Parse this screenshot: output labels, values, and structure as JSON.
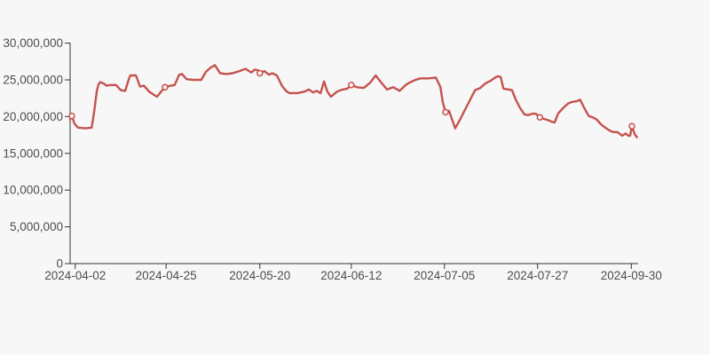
{
  "page": {
    "background_color": "#f7f7f7"
  },
  "chart_data": {
    "type": "line",
    "title": "",
    "xlabel": "",
    "ylabel": "",
    "grid": false,
    "legend": [],
    "line_color": "#c5524e",
    "marker_style": "open-circle",
    "marker_fill": "#f7f7f7",
    "axis_color": "#333333",
    "label_color": "#4d4d4d",
    "ylim": [
      0,
      30000000
    ],
    "y_ticks": [
      {
        "value": 0,
        "label": "0"
      },
      {
        "value": 5000000,
        "label": "5,000,000"
      },
      {
        "value": 10000000,
        "label": "10,000,000"
      },
      {
        "value": 15000000,
        "label": "15,000,000"
      },
      {
        "value": 20000000,
        "label": "20,000,000"
      },
      {
        "value": 25000000,
        "label": "25,000,000"
      },
      {
        "value": 30000000,
        "label": "30,000,000"
      }
    ],
    "x_ticks": [
      {
        "pos": 0.009,
        "label": "2024-04-02"
      },
      {
        "pos": 0.169,
        "label": "2024-04-25"
      },
      {
        "pos": 0.334,
        "label": "2024-05-20"
      },
      {
        "pos": 0.495,
        "label": "2024-06-12"
      },
      {
        "pos": 0.659,
        "label": "2024-07-05"
      },
      {
        "pos": 0.823,
        "label": "2024-07-27"
      },
      {
        "pos": 0.988,
        "label": "2024-09-30"
      }
    ],
    "markers": [
      [
        0.003,
        20100000
      ],
      [
        0.167,
        24000000
      ],
      [
        0.334,
        25900000
      ],
      [
        0.495,
        24300000
      ],
      [
        0.661,
        20600000
      ],
      [
        0.827,
        19900000
      ],
      [
        0.989,
        18700000
      ]
    ],
    "points": [
      [
        0.0,
        19600000
      ],
      [
        0.003,
        20100000
      ],
      [
        0.008,
        19000000
      ],
      [
        0.014,
        18500000
      ],
      [
        0.027,
        18400000
      ],
      [
        0.038,
        18500000
      ],
      [
        0.042,
        20500000
      ],
      [
        0.047,
        23500000
      ],
      [
        0.05,
        24400000
      ],
      [
        0.053,
        24700000
      ],
      [
        0.059,
        24500000
      ],
      [
        0.064,
        24200000
      ],
      [
        0.07,
        24300000
      ],
      [
        0.081,
        24300000
      ],
      [
        0.089,
        23600000
      ],
      [
        0.097,
        23500000
      ],
      [
        0.103,
        25000000
      ],
      [
        0.106,
        25600000
      ],
      [
        0.116,
        25600000
      ],
      [
        0.123,
        24100000
      ],
      [
        0.13,
        24200000
      ],
      [
        0.139,
        23400000
      ],
      [
        0.147,
        23000000
      ],
      [
        0.153,
        22700000
      ],
      [
        0.159,
        23300000
      ],
      [
        0.167,
        24000000
      ],
      [
        0.177,
        24200000
      ],
      [
        0.184,
        24300000
      ],
      [
        0.192,
        25700000
      ],
      [
        0.197,
        25800000
      ],
      [
        0.205,
        25100000
      ],
      [
        0.217,
        25000000
      ],
      [
        0.231,
        25000000
      ],
      [
        0.239,
        26100000
      ],
      [
        0.248,
        26700000
      ],
      [
        0.255,
        27000000
      ],
      [
        0.264,
        25900000
      ],
      [
        0.275,
        25800000
      ],
      [
        0.286,
        25900000
      ],
      [
        0.298,
        26200000
      ],
      [
        0.305,
        26400000
      ],
      [
        0.309,
        26500000
      ],
      [
        0.319,
        26000000
      ],
      [
        0.325,
        26400000
      ],
      [
        0.331,
        26300000
      ],
      [
        0.334,
        25900000
      ],
      [
        0.342,
        26200000
      ],
      [
        0.35,
        25700000
      ],
      [
        0.356,
        25900000
      ],
      [
        0.364,
        25600000
      ],
      [
        0.373,
        24200000
      ],
      [
        0.38,
        23500000
      ],
      [
        0.386,
        23200000
      ],
      [
        0.4,
        23200000
      ],
      [
        0.413,
        23400000
      ],
      [
        0.42,
        23700000
      ],
      [
        0.428,
        23300000
      ],
      [
        0.434,
        23500000
      ],
      [
        0.441,
        23200000
      ],
      [
        0.447,
        24800000
      ],
      [
        0.453,
        23400000
      ],
      [
        0.459,
        22700000
      ],
      [
        0.47,
        23400000
      ],
      [
        0.48,
        23700000
      ],
      [
        0.488,
        23800000
      ],
      [
        0.495,
        24300000
      ],
      [
        0.505,
        24000000
      ],
      [
        0.517,
        23900000
      ],
      [
        0.528,
        24600000
      ],
      [
        0.538,
        25600000
      ],
      [
        0.547,
        24700000
      ],
      [
        0.558,
        23700000
      ],
      [
        0.569,
        24000000
      ],
      [
        0.58,
        23500000
      ],
      [
        0.591,
        24300000
      ],
      [
        0.597,
        24600000
      ],
      [
        0.608,
        25000000
      ],
      [
        0.617,
        25200000
      ],
      [
        0.631,
        25200000
      ],
      [
        0.644,
        25300000
      ],
      [
        0.652,
        24000000
      ],
      [
        0.656,
        22000000
      ],
      [
        0.661,
        20600000
      ],
      [
        0.667,
        20800000
      ],
      [
        0.678,
        18400000
      ],
      [
        0.686,
        19500000
      ],
      [
        0.695,
        20900000
      ],
      [
        0.705,
        22400000
      ],
      [
        0.713,
        23600000
      ],
      [
        0.722,
        23900000
      ],
      [
        0.731,
        24500000
      ],
      [
        0.741,
        24900000
      ],
      [
        0.748,
        25300000
      ],
      [
        0.753,
        25500000
      ],
      [
        0.758,
        25400000
      ],
      [
        0.763,
        23800000
      ],
      [
        0.772,
        23700000
      ],
      [
        0.778,
        23600000
      ],
      [
        0.784,
        22400000
      ],
      [
        0.792,
        21200000
      ],
      [
        0.8,
        20300000
      ],
      [
        0.806,
        20200000
      ],
      [
        0.814,
        20400000
      ],
      [
        0.82,
        20400000
      ],
      [
        0.827,
        19900000
      ],
      [
        0.834,
        19700000
      ],
      [
        0.842,
        19500000
      ],
      [
        0.848,
        19300000
      ],
      [
        0.853,
        19200000
      ],
      [
        0.859,
        20400000
      ],
      [
        0.867,
        21100000
      ],
      [
        0.877,
        21800000
      ],
      [
        0.884,
        22000000
      ],
      [
        0.892,
        22100000
      ],
      [
        0.898,
        22300000
      ],
      [
        0.905,
        21200000
      ],
      [
        0.913,
        20100000
      ],
      [
        0.92,
        19900000
      ],
      [
        0.927,
        19600000
      ],
      [
        0.934,
        19000000
      ],
      [
        0.942,
        18500000
      ],
      [
        0.95,
        18100000
      ],
      [
        0.956,
        17900000
      ],
      [
        0.963,
        17900000
      ],
      [
        0.967,
        17700000
      ],
      [
        0.972,
        17400000
      ],
      [
        0.978,
        17700000
      ],
      [
        0.983,
        17400000
      ],
      [
        0.986,
        17400000
      ],
      [
        0.989,
        18700000
      ],
      [
        0.994,
        17600000
      ],
      [
        0.998,
        17200000
      ]
    ]
  }
}
